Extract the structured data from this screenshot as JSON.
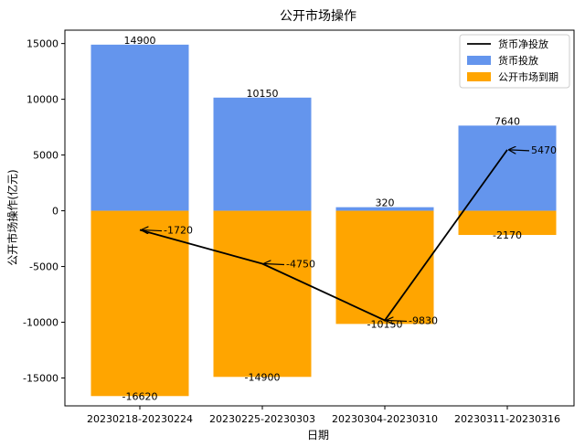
{
  "chart_data": {
    "type": "bar",
    "title": "公开市场操作",
    "xlabel": "日期",
    "ylabel": "公开市场操作(亿元)",
    "categories": [
      "20230218-20230224",
      "20230225-20230303",
      "20230304-20230310",
      "20230311-20230316"
    ],
    "ylim": [
      -17500,
      16200
    ],
    "yticks": [
      15000,
      10000,
      5000,
      0,
      -5000,
      -10000,
      -15000
    ],
    "ytick_labels": [
      "15000",
      "10000",
      "5000",
      "0",
      "-5000",
      "-10000",
      "-15000"
    ],
    "grid": false,
    "legend_position": "top-right",
    "series": [
      {
        "name": "货币投放",
        "kind": "bar",
        "color": "#6495ED",
        "values": [
          14900,
          10150,
          320,
          7640
        ],
        "labels": [
          "14900",
          "10150",
          "320",
          "7640"
        ]
      },
      {
        "name": "公开市场到期",
        "kind": "bar",
        "color": "#FFA500",
        "values": [
          -16620,
          -14900,
          -10150,
          -2170
        ],
        "labels": [
          "-16620",
          "-14900",
          "-10150",
          "-2170"
        ]
      },
      {
        "name": "货币净投放",
        "kind": "line",
        "color": "#000000",
        "values": [
          -1720,
          -4750,
          -9830,
          5470
        ],
        "labels": [
          "-1720",
          "-4750",
          "-9830",
          "5470"
        ]
      }
    ]
  }
}
